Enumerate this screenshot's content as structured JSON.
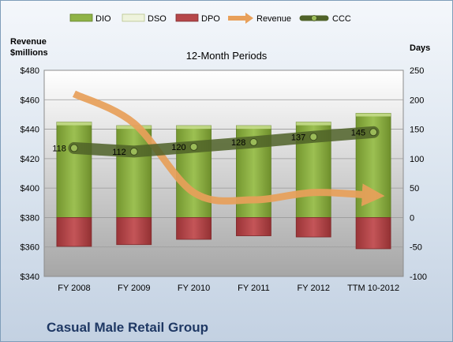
{
  "company": "Casual Male Retail Group",
  "chart_data": {
    "type": "bar",
    "title": "12-Month Periods",
    "ylabel_left_line1": "Revenue",
    "ylabel_left_line2": "$millions",
    "ylabel_right": "Days",
    "categories": [
      "FY 2008",
      "FY 2009",
      "FY 2010",
      "FY 2011",
      "FY 2012",
      "TTM 10-2012"
    ],
    "y_left": {
      "min": 340,
      "max": 480,
      "step": 20,
      "prefix": "$"
    },
    "y_right": {
      "min": -100,
      "max": 250,
      "step": 50
    },
    "legend_position": "top",
    "legend": [
      {
        "name": "DIO",
        "kind": "bar",
        "color": "#8fb347"
      },
      {
        "name": "DSO",
        "kind": "bar",
        "color": "#eef3dc"
      },
      {
        "name": "DPO",
        "kind": "bar",
        "color": "#b6474a"
      },
      {
        "name": "Revenue",
        "kind": "arrow",
        "color": "#e8a05a"
      },
      {
        "name": "CCC",
        "kind": "line-marker",
        "color": "#4f6228"
      }
    ],
    "series": [
      {
        "name": "DIO",
        "axis": "right",
        "values": [
          162,
          156,
          156,
          156,
          162,
          177
        ]
      },
      {
        "name": "DSO",
        "axis": "right",
        "values": [
          0,
          0,
          0,
          0,
          0,
          0
        ]
      },
      {
        "name": "DPO",
        "axis": "right",
        "values": [
          -49,
          -46,
          -37,
          -31,
          -33,
          -53
        ]
      },
      {
        "name": "Revenue",
        "axis": "left",
        "values": [
          464,
          444,
          397,
          392,
          397,
          395
        ]
      },
      {
        "name": "CCC",
        "axis": "right",
        "values": [
          118,
          112,
          120,
          128,
          137,
          145
        ]
      }
    ],
    "ccc_labels": [
      "118",
      "112",
      "120",
      "128",
      "137",
      "145"
    ],
    "colors": {
      "dio": "#8fb347",
      "dio_dark": "#5f7d26",
      "dpo": "#b6474a",
      "dpo_dark": "#7e2a2c",
      "revenue": "#e8a05a",
      "ccc": "#4f6228",
      "ccc_marker": "#9bbb59",
      "plot_top": "#ffffff",
      "plot_bottom": "#a9a9a9"
    }
  }
}
